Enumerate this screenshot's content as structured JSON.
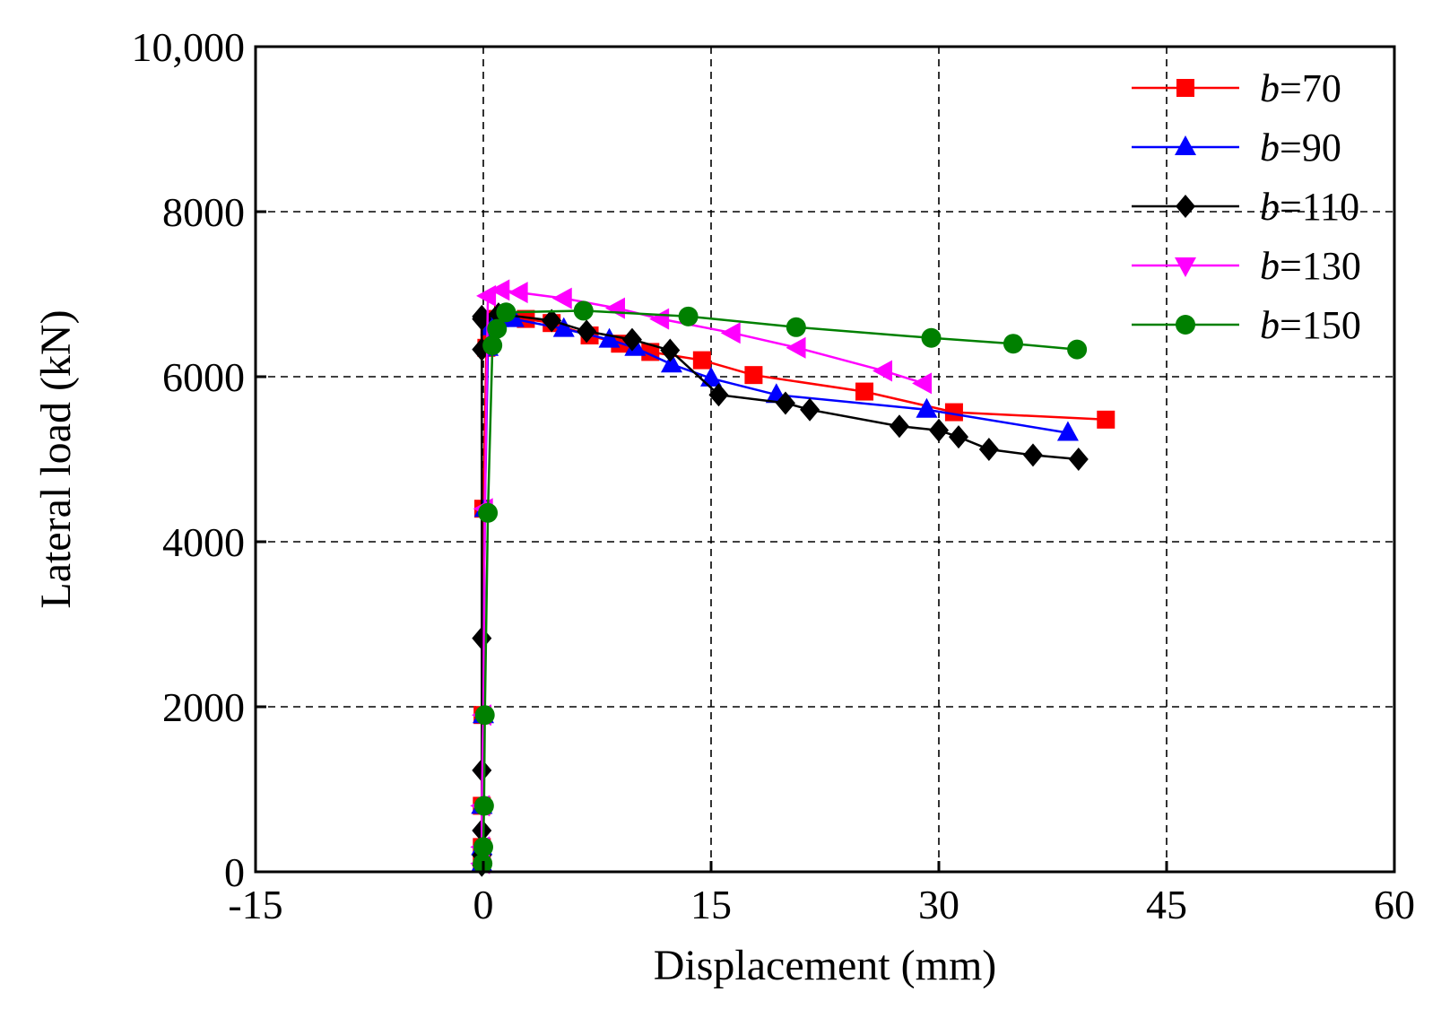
{
  "chart_data": {
    "type": "line",
    "title": "",
    "xlabel": "Displacement (mm)",
    "ylabel": "Lateral load (kN)",
    "xlim": [
      -15,
      60
    ],
    "ylim": [
      0,
      10000
    ],
    "xticks": [
      -15,
      0,
      15,
      30,
      45,
      60
    ],
    "yticks": [
      0,
      2000,
      4000,
      6000,
      8000,
      10000
    ],
    "xtick_labels": [
      "-15",
      "0",
      "15",
      "30",
      "45",
      "60"
    ],
    "ytick_labels": [
      "0",
      "2000",
      "4000",
      "6000",
      "8000",
      "10,000"
    ],
    "grid": true,
    "legend_position": "top-right",
    "series": [
      {
        "name": "b=70",
        "legend_prefix": "b",
        "legend_suffix": "=70",
        "color": "#ff0000",
        "marker": "square",
        "x": [
          -0.1,
          -0.1,
          -0.1,
          -0.05,
          0,
          0.2,
          0.4,
          0.6,
          0.9,
          1.3,
          2.8,
          4.5,
          7,
          9,
          11,
          14.4,
          17.8,
          25.1,
          31,
          41
        ],
        "y": [
          100,
          300,
          800,
          1900,
          4400,
          6350,
          6550,
          6650,
          6700,
          6750,
          6700,
          6650,
          6500,
          6400,
          6300,
          6200,
          6020,
          5820,
          5570,
          5480
        ]
      },
      {
        "name": "b=90",
        "legend_prefix": "b",
        "legend_suffix": "=90",
        "color": "#0000ff",
        "marker": "triangle-up",
        "x": [
          -0.1,
          -0.1,
          -0.1,
          0,
          0.1,
          0.3,
          0.5,
          1,
          2,
          5.3,
          8.3,
          10,
          12.4,
          15,
          19.3,
          29.2,
          38.5
        ],
        "y": [
          100,
          300,
          800,
          1900,
          4400,
          6350,
          6600,
          6700,
          6700,
          6580,
          6450,
          6350,
          6150,
          5980,
          5780,
          5600,
          5320
        ]
      },
      {
        "name": "b=110",
        "legend_prefix": "b",
        "legend_suffix": "=110",
        "color": "#000000",
        "marker": "diamond",
        "x": [
          -0.1,
          -0.1,
          -0.1,
          -0.1,
          -0.1,
          -0.1,
          -0.1,
          -0.1,
          1,
          4.5,
          6.8,
          9.8,
          12.3,
          15.5,
          19.9,
          21.5,
          27.4,
          30,
          31.3,
          33.3,
          36.2,
          39.2
        ],
        "y": [
          80,
          200,
          500,
          1230,
          2830,
          6330,
          6730,
          6700,
          6760,
          6680,
          6550,
          6450,
          6320,
          5780,
          5680,
          5600,
          5400,
          5350,
          5270,
          5120,
          5050,
          5000
        ]
      },
      {
        "name": "b=130",
        "legend_prefix": "b",
        "legend_suffix": "=130",
        "color": "#ff00ff",
        "marker": "triangle-left",
        "x": [
          -0.1,
          -0.1,
          -0.1,
          0,
          0.1,
          0.3,
          1.2,
          2.4,
          5.3,
          8.8,
          11.7,
          16.4,
          20.7,
          26.4,
          29
        ],
        "y": [
          100,
          300,
          800,
          1900,
          4400,
          6980,
          7050,
          7020,
          6950,
          6830,
          6700,
          6530,
          6350,
          6070,
          5920
        ]
      },
      {
        "name": "b=150",
        "legend_prefix": "b",
        "legend_suffix": "=150",
        "color": "#008000",
        "marker": "circle",
        "x": [
          -0.05,
          0,
          0.05,
          0.1,
          0.3,
          0.6,
          0.9,
          1.5,
          6.6,
          13.5,
          20.6,
          29.5,
          34.9,
          39.1
        ],
        "y": [
          100,
          300,
          800,
          1900,
          4350,
          6380,
          6580,
          6780,
          6800,
          6730,
          6600,
          6470,
          6400,
          6330
        ]
      }
    ]
  }
}
